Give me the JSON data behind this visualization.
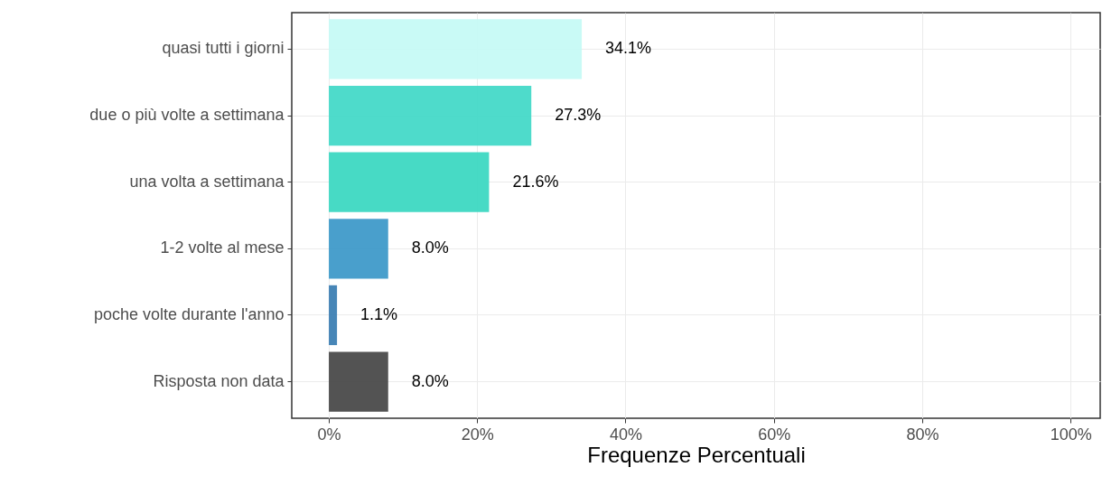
{
  "chart_data": {
    "type": "bar",
    "orientation": "horizontal",
    "xlabel": "Frequenze Percentuali",
    "categories": [
      "quasi tutti i giorni",
      "due o più volte a settimana",
      "una volta a settimana",
      "1-2 volte al mese",
      "poche volte durante l'anno",
      "Risposta non data"
    ],
    "values": [
      34.1,
      27.3,
      21.6,
      8.0,
      1.1,
      8.0
    ],
    "value_labels": [
      "34.1%",
      "27.3%",
      "21.6%",
      "8.0%",
      "1.1%",
      "8.0%"
    ],
    "colors": [
      "#c6faf5",
      "#44d9c8",
      "#3dd8c2",
      "#3f9ac9",
      "#3d7fb3",
      "#4a4a4a"
    ],
    "xlim": [
      -5,
      104
    ],
    "xticks": [
      {
        "value": 0,
        "label": "0%"
      },
      {
        "value": 20,
        "label": "20%"
      },
      {
        "value": 40,
        "label": "40%"
      },
      {
        "value": 60,
        "label": "60%"
      },
      {
        "value": 80,
        "label": "80%"
      },
      {
        "value": 100,
        "label": "100%"
      }
    ],
    "grid": true
  }
}
